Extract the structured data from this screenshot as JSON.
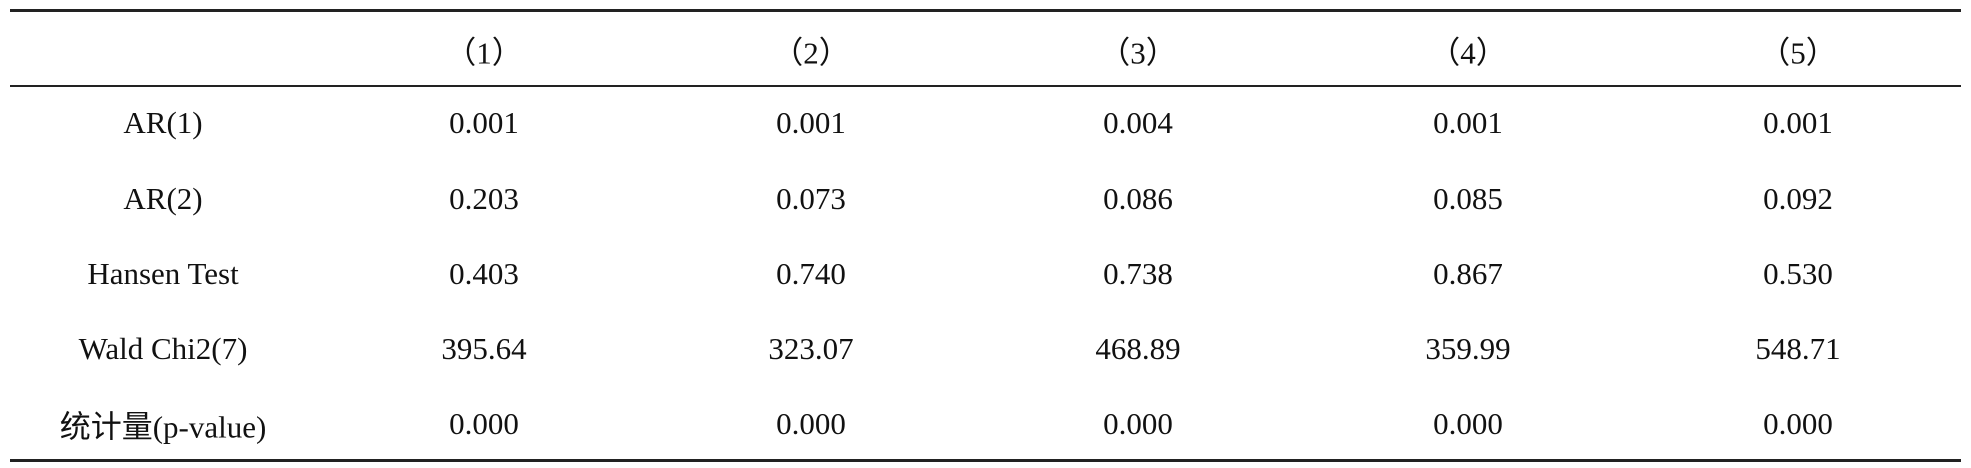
{
  "table": {
    "header": [
      "（1）",
      "（2）",
      "（3）",
      "（4）",
      "（5）"
    ],
    "rows": [
      {
        "label": "AR(1)",
        "cells": [
          "0.001",
          "0.001",
          "0.004",
          "0.001",
          "0.001"
        ]
      },
      {
        "label": "AR(2)",
        "cells": [
          "0.203",
          "0.073",
          "0.086",
          "0.085",
          "0.092"
        ]
      },
      {
        "label": "Hansen Test",
        "cells": [
          "0.403",
          "0.740",
          "0.738",
          "0.867",
          "0.530"
        ]
      },
      {
        "label": "Wald Chi2(7)",
        "cells": [
          "395.64",
          "323.07",
          "468.89",
          "359.99",
          "548.71"
        ]
      },
      {
        "label": "统计量(p-value)",
        "cells": [
          "0.000",
          "0.000",
          "0.000",
          "0.000",
          "0.000"
        ]
      }
    ]
  }
}
